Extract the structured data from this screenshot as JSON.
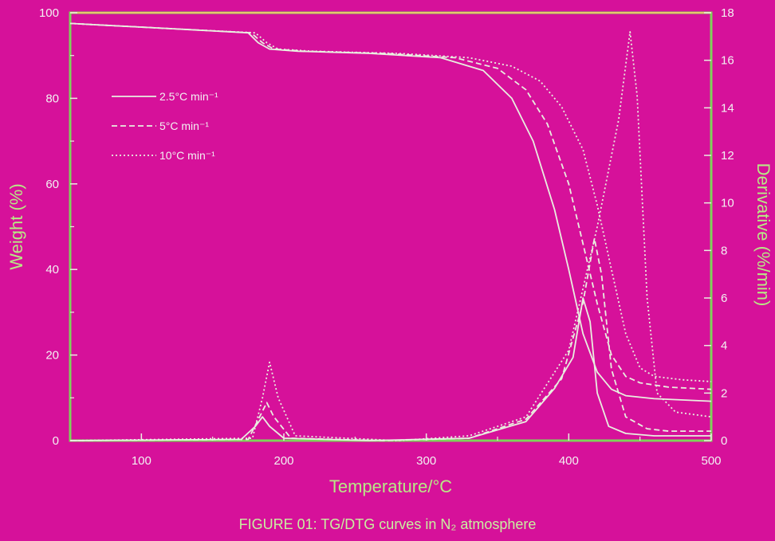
{
  "chart_data": {
    "type": "line",
    "xlabel": "Temperature/°C",
    "ylabel_left": "Weight (%)",
    "ylabel_right": "Derivative (%/min)",
    "caption": "FIGURE 01: TG/DTG curves in N₂ atmosphere",
    "xlim": [
      50,
      500
    ],
    "ylim_left": [
      0,
      100
    ],
    "ylim_right": [
      0,
      18
    ],
    "x_ticks": [
      "100",
      "200",
      "300",
      "400",
      "500"
    ],
    "y_left_ticks": [
      "0",
      "20",
      "40",
      "60",
      "80",
      "100"
    ],
    "y_right_ticks": [
      "0",
      "2",
      "4",
      "6",
      "8",
      "10",
      "12",
      "14",
      "16",
      "18"
    ],
    "colors": {
      "background": "#d6119a",
      "frame": "#7dd35a",
      "curve": "#e9efe0",
      "text": "#f2f2f2",
      "label": "#b8e986"
    },
    "legend": [
      {
        "label": "2.5°C min⁻¹",
        "style": "solid"
      },
      {
        "label": "5°C min⁻¹",
        "style": "dashed"
      },
      {
        "label": "10°C min⁻¹",
        "style": "dotted"
      }
    ],
    "tg_series": [
      {
        "name": "2.5°C min⁻¹",
        "style": "solid",
        "x": [
          50,
          120,
          175,
          182,
          190,
          210,
          260,
          310,
          340,
          360,
          375,
          390,
          400,
          410,
          420,
          430,
          440,
          460,
          500
        ],
        "y": [
          97.5,
          96.3,
          95.3,
          93,
          91.5,
          91,
          90.5,
          89.5,
          86.5,
          80,
          70,
          54,
          40,
          25,
          16,
          12,
          10.5,
          9.8,
          9.2
        ]
      },
      {
        "name": "5°C min⁻¹",
        "style": "dashed",
        "x": [
          50,
          120,
          177,
          185,
          193,
          215,
          270,
          320,
          350,
          370,
          385,
          400,
          410,
          420,
          430,
          440,
          450,
          470,
          500
        ],
        "y": [
          97.5,
          96.3,
          95.3,
          93,
          91.5,
          91,
          90.5,
          89.5,
          87,
          82,
          74,
          60,
          46,
          32,
          20,
          15,
          13.5,
          12.5,
          12
        ]
      },
      {
        "name": "10°C min⁻¹",
        "style": "dotted",
        "x": [
          50,
          120,
          180,
          188,
          196,
          220,
          280,
          330,
          360,
          380,
          395,
          410,
          420,
          430,
          440,
          450,
          460,
          480,
          500
        ],
        "y": [
          97.5,
          96.3,
          95.3,
          93,
          91.5,
          91,
          90.5,
          89.5,
          87.5,
          84,
          78,
          68,
          55,
          40,
          25,
          17,
          15,
          14.2,
          13.8
        ]
      }
    ],
    "dtg_series": [
      {
        "name": "2.5°C min⁻¹",
        "style": "solid",
        "x": [
          50,
          170,
          180,
          185,
          190,
          200,
          260,
          330,
          370,
          390,
          403,
          410,
          415,
          420,
          428,
          440,
          460,
          500
        ],
        "y": [
          0,
          0.05,
          0.6,
          1.0,
          0.6,
          0.1,
          0,
          0.1,
          0.8,
          2.2,
          3.5,
          6.0,
          5.0,
          2.0,
          0.6,
          0.3,
          0.2,
          0.2
        ]
      },
      {
        "name": "5°C min⁻¹",
        "style": "dashed",
        "x": [
          50,
          175,
          183,
          188,
          193,
          205,
          270,
          330,
          370,
          395,
          410,
          418,
          423,
          430,
          440,
          455,
          470,
          500
        ],
        "y": [
          0,
          0.05,
          1.0,
          1.6,
          1.0,
          0.1,
          0,
          0.1,
          0.9,
          2.6,
          5.8,
          8.5,
          7.0,
          3.0,
          1.0,
          0.5,
          0.4,
          0.4
        ]
      },
      {
        "name": "10°C min⁻¹",
        "style": "dotted",
        "x": [
          50,
          178,
          185,
          190,
          196,
          208,
          280,
          330,
          370,
          400,
          420,
          435,
          443,
          448,
          455,
          462,
          475,
          500
        ],
        "y": [
          0,
          0.1,
          1.8,
          3.3,
          1.8,
          0.2,
          0,
          0.2,
          1.0,
          3.8,
          9.0,
          13.5,
          17.2,
          14.5,
          6.0,
          2.0,
          1.2,
          1.0
        ]
      }
    ]
  }
}
